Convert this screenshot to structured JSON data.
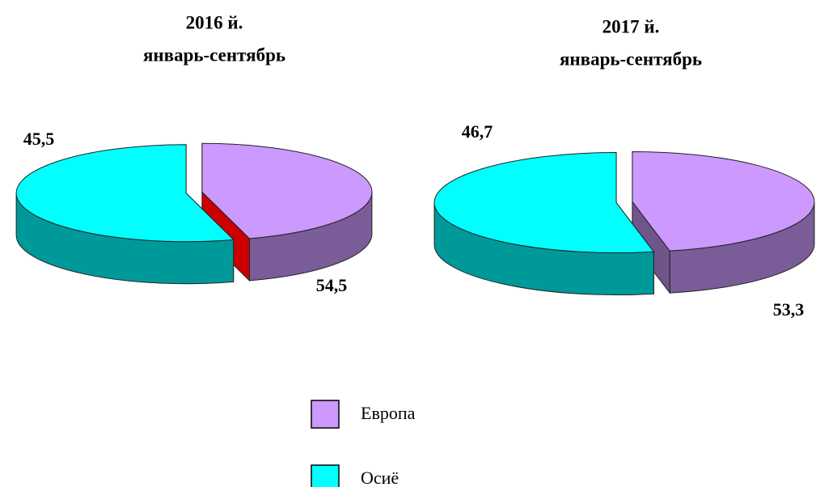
{
  "chart_data": [
    {
      "type": "pie",
      "title": "2016 й.",
      "subtitle": "январь-сентябрь",
      "categories": [
        "Европа",
        "Осиё"
      ],
      "values": [
        45.5,
        54.5
      ],
      "value_labels": [
        "45,5",
        "54,5"
      ],
      "colors": [
        "#cc99ff",
        "#00ffff"
      ],
      "legend": "bottom"
    },
    {
      "type": "pie",
      "title": "2017 й.",
      "subtitle": "январь-сентябрь",
      "categories": [
        "Европа",
        "Осиё"
      ],
      "values": [
        46.7,
        53.3
      ],
      "value_labels": [
        "46,7",
        "53,3"
      ],
      "colors": [
        "#cc99ff",
        "#00ffff"
      ],
      "legend": "bottom"
    }
  ]
}
